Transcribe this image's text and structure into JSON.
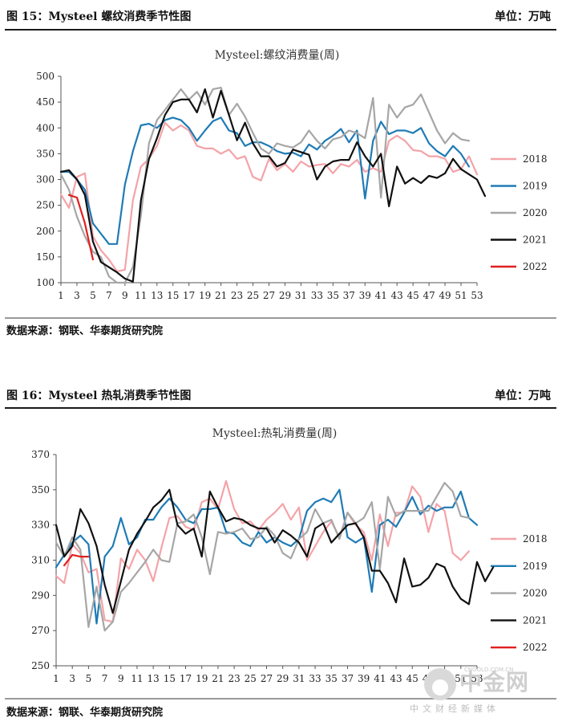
{
  "figures": [
    {
      "caption": "图 15：Mysteel 螺纹消费季节性图",
      "unit": "单位：万吨",
      "source": "数据来源：钢联、华泰期货研究院"
    },
    {
      "caption": "图 16：Mysteel 热轧消费季节性图",
      "unit": "单位：万吨",
      "source": "数据来源：钢联、华泰期货研究院"
    }
  ],
  "watermark": {
    "main": "中金网",
    "url": "CNGOLD.COM.CN",
    "sub": "中文财经新媒体"
  },
  "chart_data": [
    {
      "type": "line",
      "title": "Mysteel:螺纹消费量(周)",
      "xlabel": "",
      "ylabel": "",
      "x_ticks": [
        1,
        3,
        5,
        7,
        9,
        11,
        13,
        15,
        17,
        19,
        21,
        23,
        25,
        27,
        29,
        31,
        33,
        35,
        37,
        39,
        41,
        43,
        45,
        47,
        49,
        51,
        53
      ],
      "ylim": [
        100,
        500
      ],
      "y_ticks": [
        100,
        150,
        200,
        250,
        300,
        350,
        400,
        450,
        500
      ],
      "legend_position": "right",
      "series": [
        {
          "name": "2018",
          "color": "#f4a3a8",
          "start_week": 1,
          "values": [
            271,
            245,
            305,
            312,
            190,
            163,
            145,
            122,
            125,
            260,
            325,
            340,
            365,
            410,
            395,
            405,
            395,
            365,
            360,
            360,
            350,
            358,
            340,
            345,
            305,
            298,
            340,
            318,
            330,
            315,
            335,
            325,
            328,
            330,
            312,
            330,
            325,
            338,
            315,
            322,
            315,
            375,
            385,
            375,
            357,
            355,
            345,
            345,
            340,
            315,
            320,
            345,
            310
          ]
        },
        {
          "name": "2019",
          "color": "#1f7bb5",
          "start_week": 1,
          "values": [
            315,
            315,
            300,
            280,
            215,
            195,
            175,
            175,
            290,
            355,
            405,
            408,
            400,
            415,
            420,
            415,
            400,
            375,
            395,
            413,
            420,
            395,
            390,
            365,
            372,
            372,
            365,
            355,
            350,
            352,
            345,
            368,
            358,
            375,
            385,
            398,
            372,
            395,
            263,
            375,
            412,
            388,
            395,
            395,
            390,
            400,
            370,
            355,
            345,
            365,
            350,
            325
          ]
        },
        {
          "name": "2020",
          "color": "#a6a6a6",
          "start_week": 1,
          "values": [
            310,
            280,
            228,
            190,
            160,
            150,
            112,
            100,
            100,
            130,
            230,
            370,
            415,
            435,
            455,
            475,
            455,
            470,
            445,
            475,
            478,
            425,
            447,
            422,
            390,
            360,
            350,
            370,
            365,
            362,
            372,
            395,
            375,
            360,
            378,
            382,
            395,
            390,
            380,
            458,
            265,
            445,
            420,
            440,
            445,
            465,
            430,
            395,
            370,
            390,
            378,
            375
          ]
        },
        {
          "name": "2021",
          "color": "#111111",
          "start_week": 1,
          "values": [
            315,
            318,
            300,
            270,
            180,
            140,
            130,
            120,
            108,
            102,
            260,
            340,
            380,
            425,
            450,
            455,
            455,
            430,
            475,
            420,
            472,
            425,
            376,
            410,
            370,
            345,
            345,
            325,
            332,
            358,
            353,
            348,
            300,
            325,
            335,
            338,
            338,
            372,
            345,
            325,
            350,
            248,
            325,
            292,
            303,
            293,
            307,
            303,
            312,
            340,
            320,
            310,
            300,
            268
          ]
        },
        {
          "name": "2022",
          "color": "#e02020",
          "start_week": 2,
          "values": [
            270,
            265,
            215,
            145
          ]
        }
      ]
    },
    {
      "type": "line",
      "title": "Mysteel:热轧消费量(周)",
      "xlabel": "",
      "ylabel": "",
      "x_ticks": [
        1,
        3,
        5,
        7,
        9,
        11,
        13,
        15,
        17,
        19,
        21,
        23,
        25,
        27,
        29,
        31,
        33,
        35,
        37,
        39,
        41,
        43,
        45,
        47,
        49,
        51,
        53
      ],
      "ylim": [
        250,
        370
      ],
      "y_ticks": [
        250,
        270,
        290,
        310,
        330,
        350,
        370
      ],
      "legend_position": "right",
      "series": [
        {
          "name": "2018",
          "color": "#f4a3a8",
          "start_week": 1,
          "values": [
            301,
            297,
            319,
            314,
            303,
            305,
            276,
            275,
            311,
            305,
            316,
            310,
            298,
            317,
            334,
            335,
            329,
            327,
            343,
            345,
            339,
            355,
            339,
            331,
            332,
            327,
            333,
            337,
            342,
            333,
            340,
            310,
            318,
            326,
            332,
            323,
            337,
            330,
            326,
            310,
            336,
            318,
            337,
            337,
            352,
            346,
            326,
            342,
            338,
            314,
            310,
            315
          ]
        },
        {
          "name": "2019",
          "color": "#1f7bb5",
          "start_week": 1,
          "values": [
            306,
            313,
            320,
            324,
            319,
            274,
            312,
            318,
            334,
            319,
            323,
            333,
            333,
            340,
            345,
            340,
            333,
            331,
            339,
            339,
            340,
            326,
            325,
            320,
            318,
            326,
            320,
            323,
            320,
            318,
            322,
            338,
            343,
            345,
            343,
            350,
            323,
            320,
            323,
            292,
            330,
            333,
            329,
            337,
            346,
            336,
            341,
            338,
            340,
            340,
            349,
            334,
            330
          ]
        },
        {
          "name": "2020",
          "color": "#a6a6a6",
          "start_week": 1,
          "values": [
            320,
            312,
            323,
            316,
            272,
            295,
            270,
            275,
            292,
            297,
            303,
            309,
            316,
            310,
            309,
            331,
            332,
            336,
            323,
            302,
            326,
            325,
            326,
            328,
            322,
            323,
            329,
            324,
            314,
            311,
            322,
            326,
            339,
            331,
            333,
            322,
            337,
            331,
            334,
            343,
            305,
            346,
            335,
            338,
            338,
            338,
            338,
            346,
            354,
            349,
            335,
            334
          ]
        },
        {
          "name": "2021",
          "color": "#111111",
          "start_week": 1,
          "values": [
            330,
            312,
            318,
            339,
            331,
            318,
            296,
            280,
            298,
            316,
            325,
            332,
            340,
            344,
            350,
            330,
            325,
            328,
            312,
            349,
            340,
            332,
            334,
            333,
            330,
            328,
            328,
            320,
            327,
            324,
            320,
            312,
            328,
            331,
            320,
            325,
            330,
            331,
            323,
            304,
            304,
            297,
            286,
            311,
            295,
            296,
            300,
            308,
            306,
            295,
            288,
            285,
            309,
            298,
            306
          ]
        },
        {
          "name": "2022",
          "color": "#e02020",
          "start_week": 2,
          "values": [
            307,
            313,
            312,
            312
          ]
        }
      ]
    }
  ]
}
